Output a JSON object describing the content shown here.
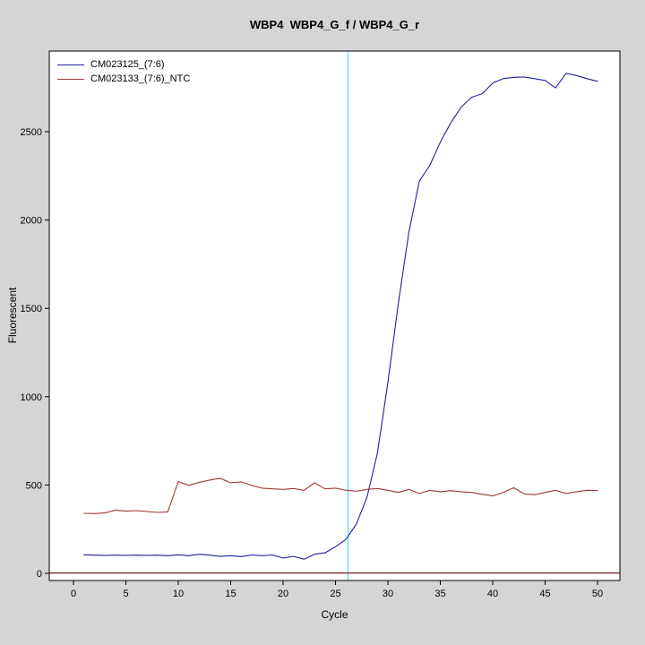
{
  "chart": {
    "title": "WBP4  WBP4_G_f / WBP4_G_r",
    "xlabel": "Cycle",
    "ylabel": "Fluorescent",
    "legend": [
      {
        "label": "CM023125_(7:6)",
        "color": "#2020a0"
      },
      {
        "label": "CM023133_(7:6)_NTC",
        "color": "#9e3a32"
      }
    ]
  },
  "chart_data": {
    "type": "line",
    "title": "WBP4  WBP4_G_f / WBP4_G_r",
    "xlabel": "Cycle",
    "ylabel": "Fluorescent",
    "xlim": [
      -2.3,
      52.1
    ],
    "ylim": [
      -40,
      2955
    ],
    "xticks": [
      0,
      5,
      10,
      15,
      20,
      25,
      30,
      35,
      40,
      45,
      50
    ],
    "yticks": [
      0,
      500,
      1000,
      1500,
      2000,
      2500
    ],
    "grid": false,
    "legend_position": "top-left",
    "x": [
      1,
      2,
      3,
      4,
      5,
      6,
      7,
      8,
      9,
      10,
      11,
      12,
      13,
      14,
      15,
      16,
      17,
      18,
      19,
      20,
      21,
      22,
      23,
      24,
      25,
      26,
      27,
      28,
      29,
      30,
      31,
      32,
      33,
      34,
      35,
      36,
      37,
      38,
      39,
      40,
      41,
      42,
      43,
      44,
      45,
      46,
      47,
      48,
      49,
      50
    ],
    "series": [
      {
        "name": "CM023125_(7:6)",
        "color": "#2020a0",
        "values": [
          105,
          103,
          102,
          103,
          102,
          103,
          102,
          103,
          100,
          105,
          100,
          108,
          103,
          96,
          100,
          95,
          104,
          100,
          104,
          86,
          96,
          80,
          108,
          116,
          150,
          192,
          280,
          430,
          680,
          1080,
          1530,
          1930,
          2220,
          2310,
          2440,
          2550,
          2640,
          2695,
          2715,
          2775,
          2800,
          2808,
          2810,
          2800,
          2790,
          2748,
          2830,
          2818,
          2800,
          2785
        ]
      },
      {
        "name": "CM023133_(7:6)_NTC",
        "color": "#9e3a32",
        "values": [
          340,
          338,
          342,
          358,
          352,
          355,
          350,
          345,
          348,
          520,
          498,
          515,
          528,
          538,
          512,
          518,
          498,
          482,
          478,
          475,
          480,
          470,
          512,
          478,
          482,
          470,
          465,
          475,
          480,
          470,
          458,
          475,
          452,
          470,
          462,
          468,
          462,
          458,
          448,
          438,
          458,
          485,
          450,
          445,
          458,
          470,
          452,
          462,
          470,
          468
        ]
      }
    ],
    "threshold_line": {
      "x": 26.2,
      "color": "#55e0ee"
    },
    "baseline": {
      "y": 2,
      "color": "#7a2020"
    }
  }
}
